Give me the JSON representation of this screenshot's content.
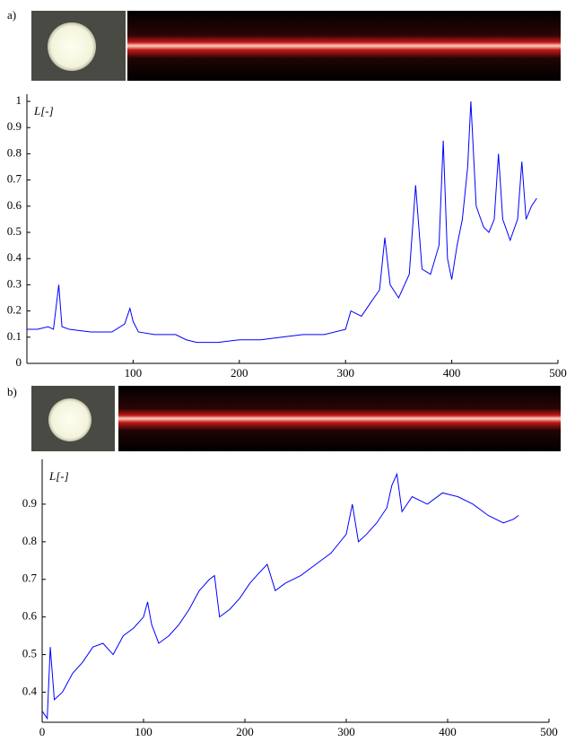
{
  "chart_data": [
    {
      "type": "line",
      "panel_label": "a)",
      "y_label": "L[-]",
      "x": [
        0,
        10,
        20,
        25,
        30,
        33,
        40,
        60,
        80,
        92,
        97,
        100,
        105,
        120,
        140,
        150,
        160,
        180,
        200,
        220,
        240,
        260,
        280,
        300,
        305,
        315,
        325,
        332,
        337,
        342,
        350,
        360,
        366,
        372,
        380,
        388,
        392,
        396,
        400,
        405,
        410,
        415,
        418,
        423,
        430,
        435,
        440,
        444,
        448,
        455,
        462,
        466,
        470,
        475,
        480
      ],
      "series": [
        {
          "color": "#0000ff",
          "values": [
            0.13,
            0.13,
            0.14,
            0.13,
            0.3,
            0.14,
            0.13,
            0.12,
            0.12,
            0.15,
            0.21,
            0.16,
            0.12,
            0.11,
            0.11,
            0.09,
            0.08,
            0.08,
            0.09,
            0.09,
            0.1,
            0.11,
            0.11,
            0.13,
            0.2,
            0.18,
            0.24,
            0.28,
            0.48,
            0.3,
            0.25,
            0.34,
            0.68,
            0.36,
            0.34,
            0.45,
            0.85,
            0.4,
            0.32,
            0.45,
            0.55,
            0.75,
            1.0,
            0.6,
            0.52,
            0.5,
            0.55,
            0.8,
            0.55,
            0.47,
            0.55,
            0.77,
            0.55,
            0.6,
            0.63
          ]
        }
      ],
      "xlim": [
        0,
        500
      ],
      "ylim": [
        0,
        1
      ],
      "xticks": [
        100,
        200,
        300,
        400,
        500
      ],
      "yticks": [
        0,
        0.1,
        0.2,
        0.3,
        0.4,
        0.5,
        0.6,
        0.7,
        0.8,
        0.9,
        1
      ]
    },
    {
      "type": "line",
      "panel_label": "b)",
      "y_label": "L[-]",
      "x": [
        0,
        5,
        8,
        12,
        20,
        30,
        40,
        50,
        60,
        70,
        80,
        90,
        100,
        104,
        108,
        115,
        125,
        135,
        145,
        155,
        165,
        170,
        175,
        185,
        195,
        205,
        215,
        222,
        230,
        240,
        255,
        270,
        285,
        300,
        306,
        312,
        320,
        330,
        340,
        345,
        350,
        355,
        365,
        380,
        395,
        410,
        425,
        440,
        455,
        465,
        470
      ],
      "series": [
        {
          "color": "#0000ff",
          "values": [
            0.35,
            0.33,
            0.52,
            0.38,
            0.4,
            0.45,
            0.48,
            0.52,
            0.53,
            0.5,
            0.55,
            0.57,
            0.6,
            0.64,
            0.58,
            0.53,
            0.55,
            0.58,
            0.62,
            0.67,
            0.7,
            0.71,
            0.6,
            0.62,
            0.65,
            0.69,
            0.72,
            0.74,
            0.67,
            0.69,
            0.71,
            0.74,
            0.77,
            0.82,
            0.9,
            0.8,
            0.82,
            0.85,
            0.89,
            0.95,
            0.98,
            0.88,
            0.92,
            0.9,
            0.93,
            0.92,
            0.9,
            0.87,
            0.85,
            0.86,
            0.87
          ]
        }
      ],
      "xlim": [
        0,
        500
      ],
      "ylim": [
        0.32,
        1
      ],
      "xticks": [
        0,
        100,
        200,
        300,
        400,
        500
      ],
      "yticks": [
        0.4,
        0.5,
        0.6,
        0.7,
        0.8,
        0.9
      ]
    }
  ]
}
